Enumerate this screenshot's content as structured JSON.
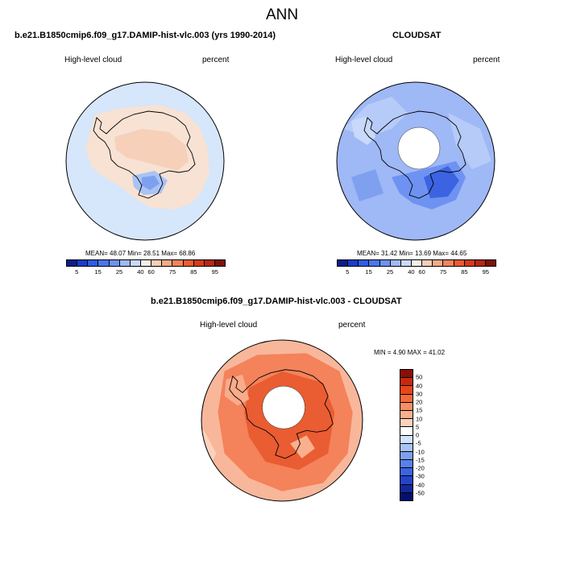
{
  "page_title": "ANN",
  "panel1": {
    "title": "b.e21.B1850cmip6.f09_g17.DAMIP-hist-vlc.003 (yrs 1990-2014)",
    "variable": "High-level cloud",
    "units": "percent",
    "stats": "MEAN=  48.07  Min=  28.51  Max=  68.86"
  },
  "panel2": {
    "title": "CLOUDSAT",
    "variable": "High-level cloud",
    "units": "percent",
    "stats": "MEAN=  31.42  Min=  13.69  Max=  44.65"
  },
  "panel3": {
    "title": "b.e21.B1850cmip6.f09_g17.DAMIP-hist-vlc.003 - CLOUDSAT",
    "variable": "High-level cloud",
    "units": "percent",
    "stats": "MIN =   4.90 MAX =  41.02"
  },
  "abs_colorbar": {
    "colors": [
      "#0a1e8c",
      "#1a3cc8",
      "#2f5ce6",
      "#4a76ee",
      "#6e92f2",
      "#9fb8f6",
      "#c9d9fa",
      "#f4eee6",
      "#f7cdb6",
      "#f5a988",
      "#f0835c",
      "#ea5c32",
      "#d43b1b",
      "#b52814",
      "#7e1206"
    ],
    "ticks": [
      "5",
      "15",
      "25",
      "40",
      "60",
      "75",
      "85",
      "95"
    ]
  },
  "diff_colorbar": {
    "colors": [
      "#8a0f06",
      "#c42a10",
      "#e8451c",
      "#f26a3c",
      "#f78f64",
      "#fab08e",
      "#fdd2bc",
      "#ffffff",
      "#d3e3fb",
      "#a9c3f5",
      "#7ea0ef",
      "#5a80ea",
      "#3c63e2",
      "#2444c6",
      "#12289a",
      "#050f6e"
    ],
    "ticks": [
      "50",
      "40",
      "30",
      "20",
      "15",
      "10",
      "5",
      "0",
      "-5",
      "-10",
      "-15",
      "-20",
      "-30",
      "-40",
      "-50"
    ]
  }
}
